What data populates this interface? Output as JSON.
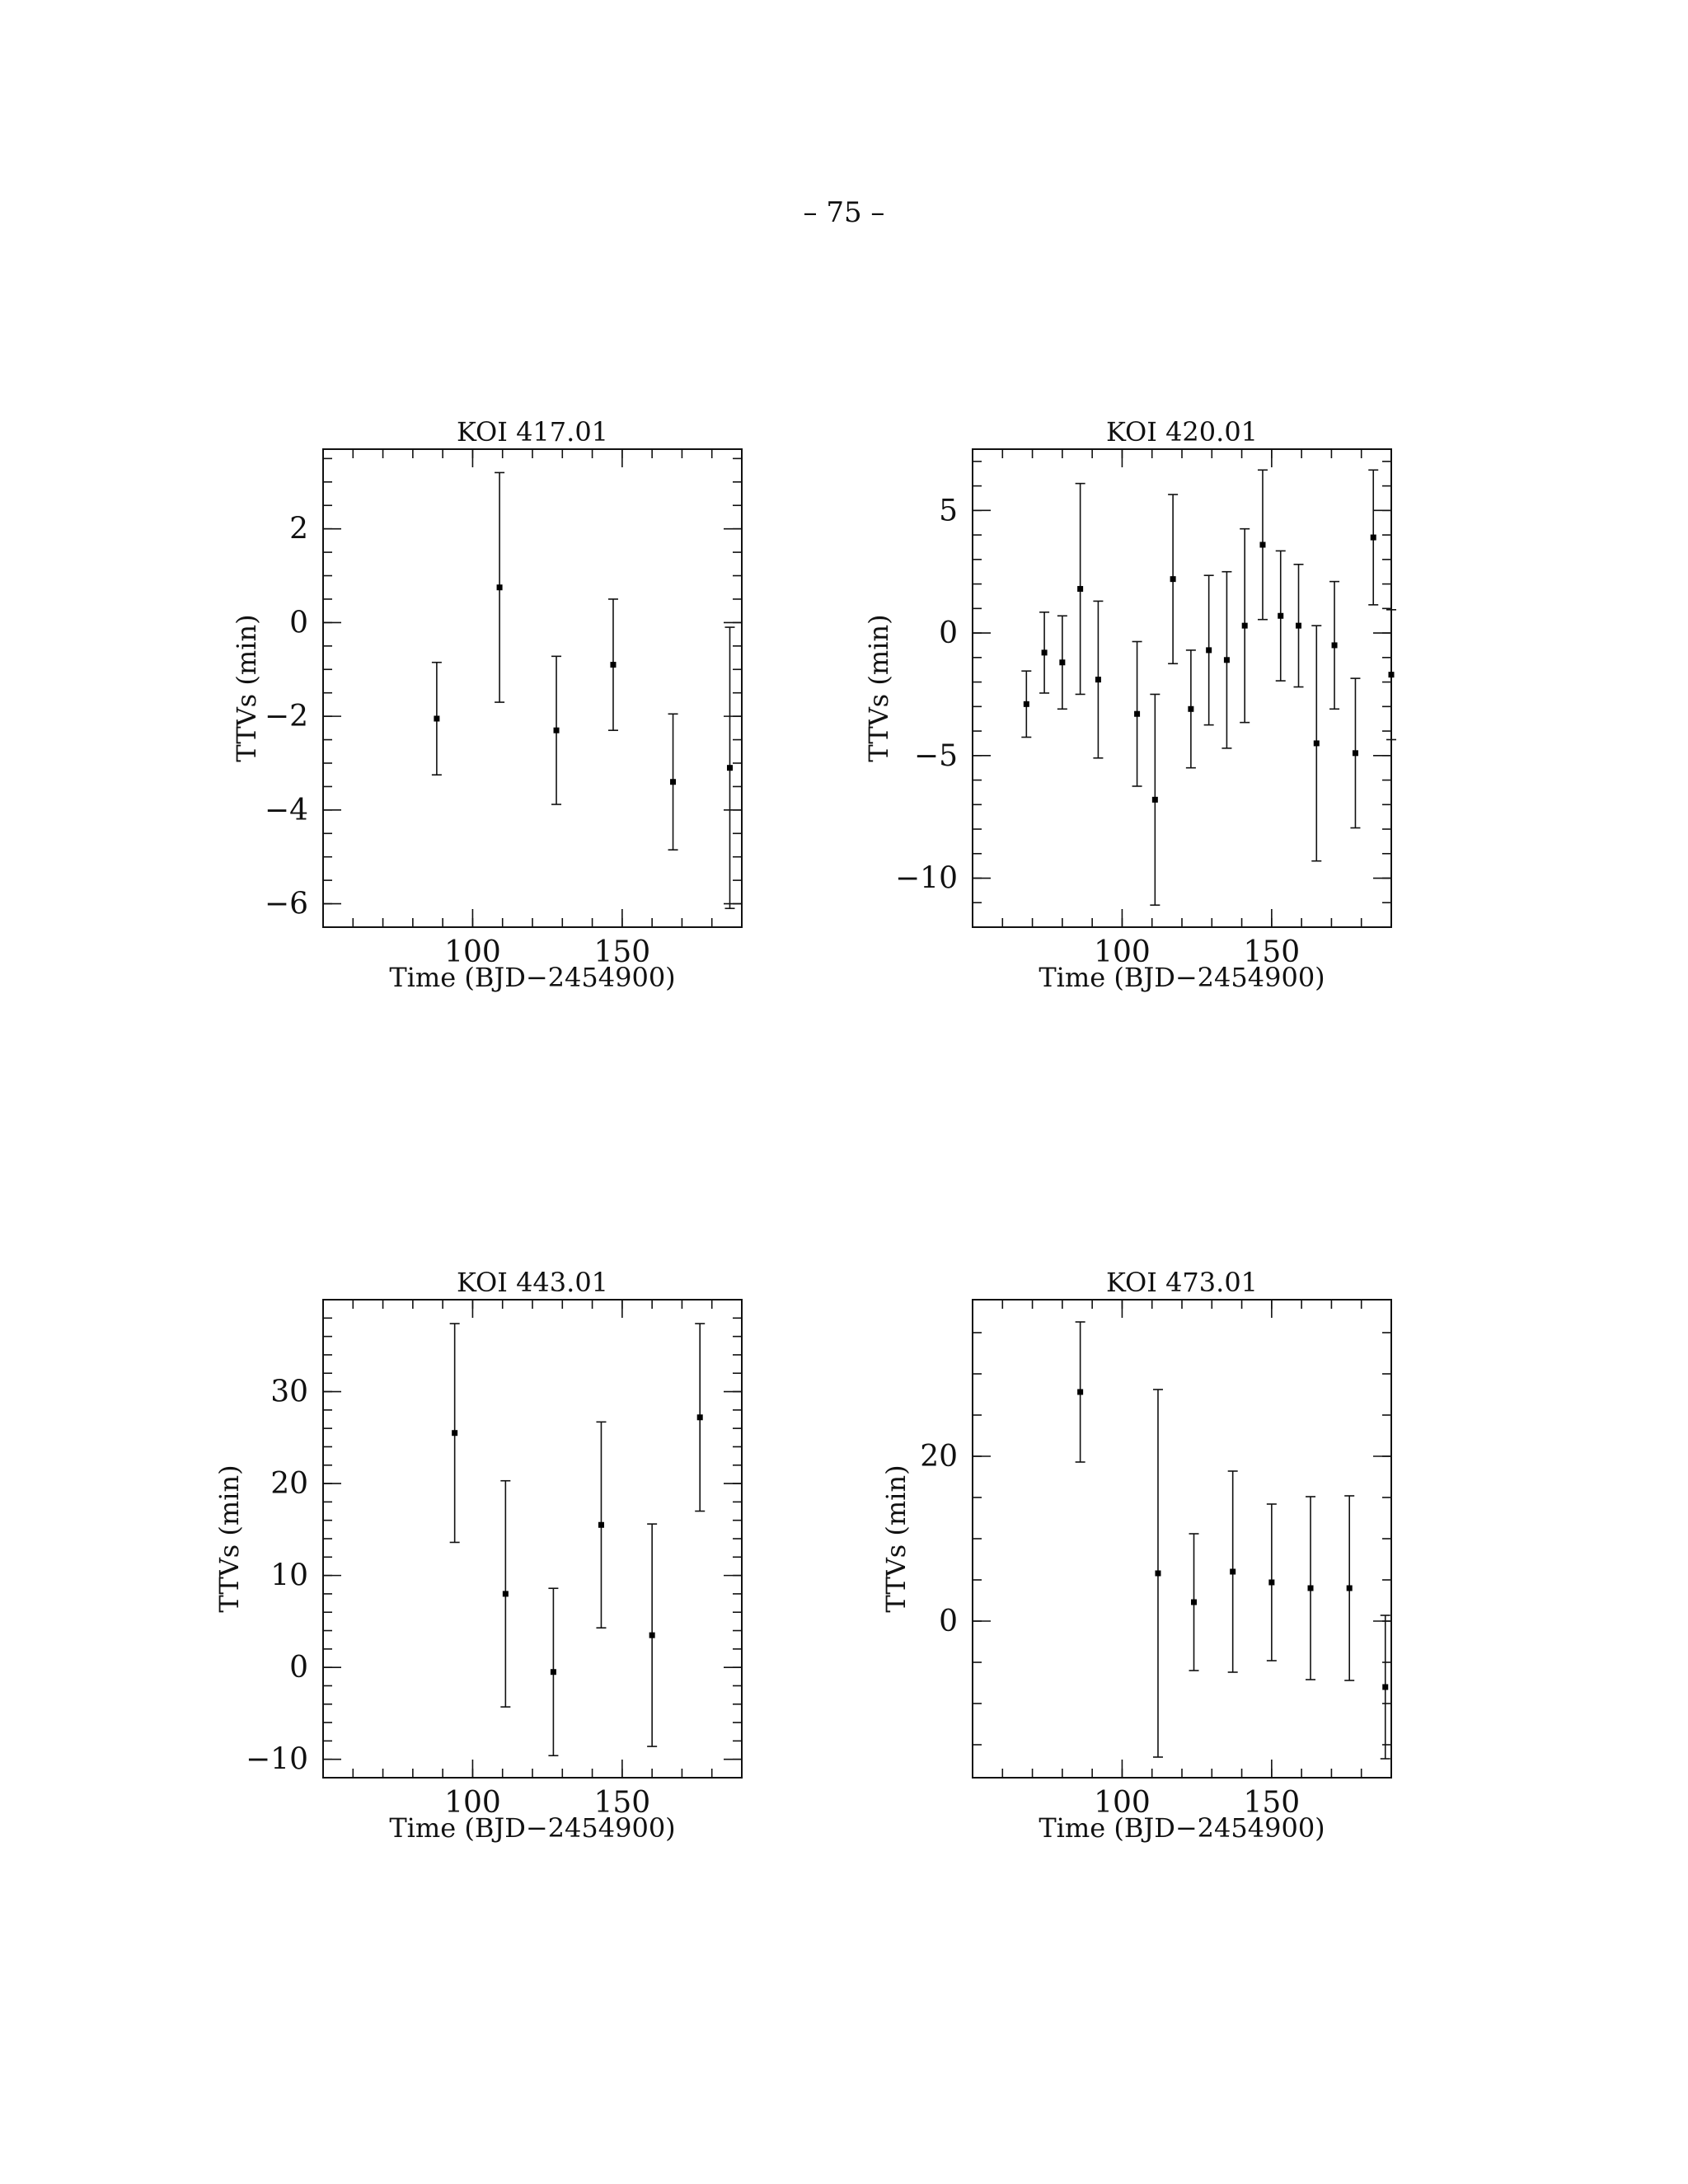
{
  "page": {
    "number_text": "– 75 –"
  },
  "chart_data": [
    {
      "type": "scatter",
      "title": "KOI 417.01",
      "xlabel": "Time (BJD−2454900)",
      "ylabel": "TTVs (min)",
      "xlim": [
        50,
        190
      ],
      "ylim": [
        -6.5,
        3.7
      ],
      "xticks": [
        100,
        150
      ],
      "yticks": [
        -6,
        -4,
        -2,
        0,
        2
      ],
      "x_minor": 10,
      "y_minor": 0.5,
      "series": [
        {
          "x": [
            88,
            109,
            128,
            147,
            167,
            186
          ],
          "y": [
            -2.05,
            0.75,
            -2.3,
            -0.9,
            -3.4,
            -3.1
          ],
          "err": [
            1.2,
            2.45,
            1.58,
            1.4,
            1.45,
            3.0
          ]
        }
      ]
    },
    {
      "type": "scatter",
      "title": "KOI 420.01",
      "xlabel": "Time (BJD−2454900)",
      "ylabel": "TTVs (min)",
      "xlim": [
        50,
        190
      ],
      "ylim": [
        -12,
        7.5
      ],
      "xticks": [
        100,
        150
      ],
      "yticks": [
        -10,
        -5,
        0,
        5
      ],
      "x_minor": 10,
      "y_minor": 1,
      "series": [
        {
          "x": [
            68,
            74,
            80,
            86,
            92,
            105,
            111,
            117,
            123,
            129,
            135,
            141,
            147,
            153,
            159,
            165,
            171,
            178,
            184,
            190
          ],
          "y": [
            -2.9,
            -0.8,
            -1.2,
            1.8,
            -1.9,
            -3.3,
            -6.8,
            2.2,
            -3.1,
            -0.7,
            -1.1,
            0.3,
            3.6,
            0.7,
            0.3,
            -4.5,
            -0.5,
            -4.9,
            3.9,
            -1.7
          ],
          "err": [
            1.35,
            1.65,
            1.9,
            4.3,
            3.2,
            2.95,
            4.3,
            3.45,
            2.4,
            3.05,
            3.6,
            3.95,
            3.05,
            2.65,
            2.5,
            4.8,
            2.6,
            3.05,
            2.75,
            2.65
          ]
        }
      ]
    },
    {
      "type": "scatter",
      "title": "KOI 443.01",
      "xlabel": "Time (BJD−2454900)",
      "ylabel": "TTVs (min)",
      "xlim": [
        50,
        190
      ],
      "ylim": [
        -12,
        40
      ],
      "xticks": [
        100,
        150
      ],
      "yticks": [
        -10,
        0,
        10,
        20,
        30
      ],
      "x_minor": 10,
      "y_minor": 2,
      "series": [
        {
          "x": [
            94,
            111,
            127,
            143,
            160,
            176
          ],
          "y": [
            25.5,
            8,
            -0.5,
            15.5,
            3.5,
            27.2
          ],
          "err": [
            11.9,
            12.3,
            9.1,
            11.2,
            12.1,
            10.2
          ]
        }
      ]
    },
    {
      "type": "scatter",
      "title": "KOI 473.01",
      "xlabel": "Time (BJD−2454900)",
      "ylabel": "TTVs (min)",
      "xlim": [
        50,
        190
      ],
      "ylim": [
        -19,
        39
      ],
      "xticks": [
        100,
        150
      ],
      "yticks": [
        0,
        20
      ],
      "x_minor": 10,
      "y_minor": 5,
      "series": [
        {
          "x": [
            86,
            112,
            124,
            137,
            150,
            163,
            176,
            188
          ],
          "y": [
            27.8,
            5.8,
            2.3,
            6,
            4.7,
            4,
            4,
            -8
          ],
          "err": [
            8.5,
            22.3,
            8.3,
            12.2,
            9.5,
            11.1,
            11.2,
            8.7
          ]
        }
      ]
    }
  ]
}
